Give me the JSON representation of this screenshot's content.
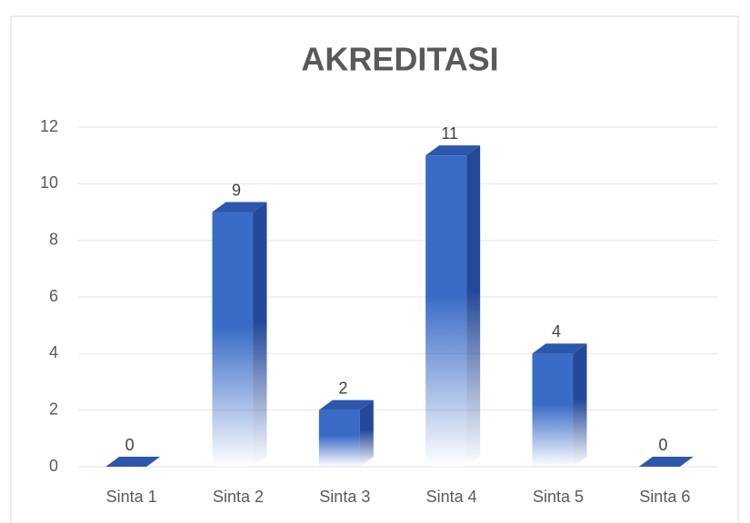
{
  "chart_data": {
    "type": "bar3d",
    "title": "AKREDITASI",
    "categories": [
      "Sinta 1",
      "Sinta 2",
      "Sinta 3",
      "Sinta 4",
      "Sinta 5",
      "Sinta 6"
    ],
    "values": [
      0,
      9,
      2,
      11,
      4,
      0
    ],
    "color": "#3a6cc7",
    "ylim": [
      0,
      12
    ],
    "yticks": [
      0,
      2,
      4,
      6,
      8,
      10,
      12
    ],
    "grid": true
  }
}
